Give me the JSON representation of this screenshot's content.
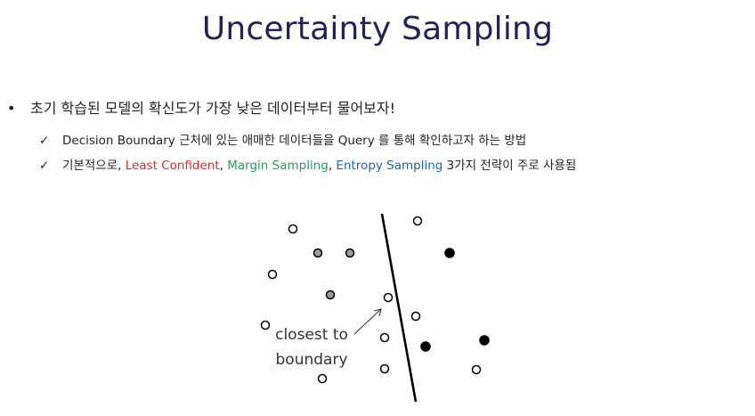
{
  "title": "Uncertainty Sampling",
  "bullet": {
    "marker": "•",
    "text": "초기 학습된 모델의 확신도가 가장 낮은 데이터부터 물어보자!"
  },
  "subpoints": [
    {
      "marker": "✓",
      "text": "Decision Boundary 근처에 있는 애매한 데이터들을 Query 를 통해 확인하고자 하는 방법"
    },
    {
      "marker": "✓",
      "prefix": "기본적으로, ",
      "strategies": [
        {
          "label": "Least Confident",
          "color": "#e12c1f"
        },
        {
          "label": "Margin Sampling",
          "color": "#22a24a"
        },
        {
          "label": "Entropy Sampling",
          "color": "#1f63b5"
        }
      ],
      "sep": ", ",
      "suffix": " 3가지 전략이 주로 사용됨"
    }
  ],
  "diagram": {
    "annotation_line1": "closest to",
    "annotation_line2": "boundary"
  }
}
